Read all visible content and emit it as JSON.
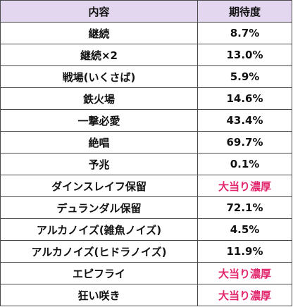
{
  "table": {
    "headers": [
      "内容",
      "期待度"
    ],
    "accent_color": "#e2266d",
    "header_bg": "#e3d6ef",
    "rows": [
      {
        "item": "継続",
        "value": "8.7%",
        "highlight": false
      },
      {
        "item": "継続×2",
        "value": "13.0%",
        "highlight": false
      },
      {
        "item": "戦場(いくさば)",
        "value": "5.9%",
        "highlight": false
      },
      {
        "item": "鉄火場",
        "value": "14.6%",
        "highlight": false
      },
      {
        "item": "一撃必愛",
        "value": "43.4%",
        "highlight": false
      },
      {
        "item": "絶唱",
        "value": "69.7%",
        "highlight": false
      },
      {
        "item": "予兆",
        "value": "0.1%",
        "highlight": false
      },
      {
        "item": "ダインスレイフ保留",
        "value": "大当り濃厚",
        "highlight": true
      },
      {
        "item": "デュランダル保留",
        "value": "72.1%",
        "highlight": false
      },
      {
        "item": "アルカノイズ(雑魚ノイズ)",
        "value": "4.5%",
        "highlight": false
      },
      {
        "item": "アルカノイズ(ヒドラノイズ)",
        "value": "11.9%",
        "highlight": false
      },
      {
        "item": "エピフライ",
        "value": "大当り濃厚",
        "highlight": true
      },
      {
        "item": "狂い咲き",
        "value": "大当り濃厚",
        "highlight": true
      }
    ]
  }
}
